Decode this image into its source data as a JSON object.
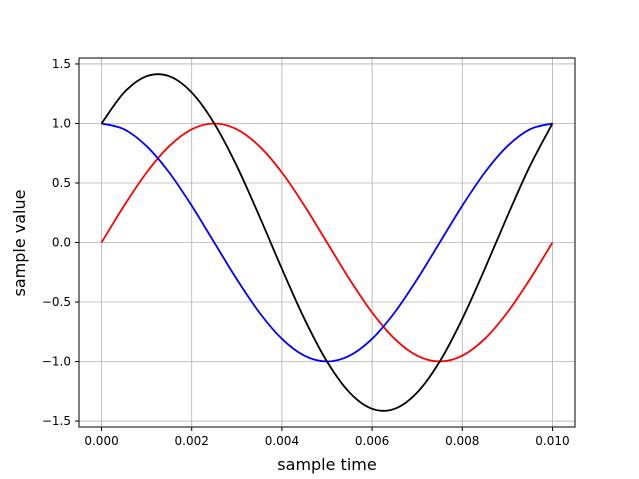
{
  "chart_data": {
    "type": "line",
    "title": "",
    "xlabel": "sample time",
    "ylabel": "sample value",
    "xlim": [
      -0.0005,
      0.0105
    ],
    "ylim": [
      -1.55,
      1.55
    ],
    "grid": true,
    "legend": "none",
    "x_ticks": [
      {
        "value": 0.0,
        "label": "0.000"
      },
      {
        "value": 0.002,
        "label": "0.002"
      },
      {
        "value": 0.004,
        "label": "0.004"
      },
      {
        "value": 0.006,
        "label": "0.006"
      },
      {
        "value": 0.008,
        "label": "0.008"
      },
      {
        "value": 0.01,
        "label": "0.010"
      }
    ],
    "y_ticks": [
      {
        "value": 1.5,
        "label": "1.5"
      },
      {
        "value": 1.0,
        "label": "1.0"
      },
      {
        "value": 0.5,
        "label": "0.5"
      },
      {
        "value": 0.0,
        "label": "0.0"
      },
      {
        "value": -0.5,
        "label": "−0.5"
      },
      {
        "value": -1.0,
        "label": "−1.0"
      },
      {
        "value": -1.5,
        "label": "−1.5"
      }
    ],
    "x": [
      0.0,
      0.0005,
      0.001,
      0.0015,
      0.002,
      0.0025,
      0.003,
      0.0035,
      0.004,
      0.0045,
      0.005,
      0.0055,
      0.006,
      0.0065,
      0.007,
      0.0075,
      0.008,
      0.0085,
      0.009,
      0.0095,
      0.01
    ],
    "series": [
      {
        "color": "#ff0000",
        "values": [
          0.0,
          0.309,
          0.588,
          0.809,
          0.951,
          1.0,
          0.951,
          0.809,
          0.588,
          0.309,
          0.0,
          -0.309,
          -0.588,
          -0.809,
          -0.951,
          -1.0,
          -0.951,
          -0.809,
          -0.588,
          -0.309,
          0.0
        ]
      },
      {
        "color": "#0000ff",
        "values": [
          1.0,
          0.951,
          0.809,
          0.588,
          0.309,
          0.0,
          -0.309,
          -0.588,
          -0.809,
          -0.951,
          -1.0,
          -0.951,
          -0.809,
          -0.588,
          -0.309,
          0.0,
          0.309,
          0.588,
          0.809,
          0.951,
          1.0
        ]
      },
      {
        "color": "#000000",
        "values": [
          1.0,
          1.26,
          1.397,
          1.397,
          1.26,
          1.0,
          0.642,
          0.221,
          -0.221,
          -0.642,
          -1.0,
          -1.26,
          -1.397,
          -1.397,
          -1.26,
          -1.0,
          -0.642,
          -0.221,
          0.221,
          0.642,
          1.0
        ]
      }
    ]
  }
}
